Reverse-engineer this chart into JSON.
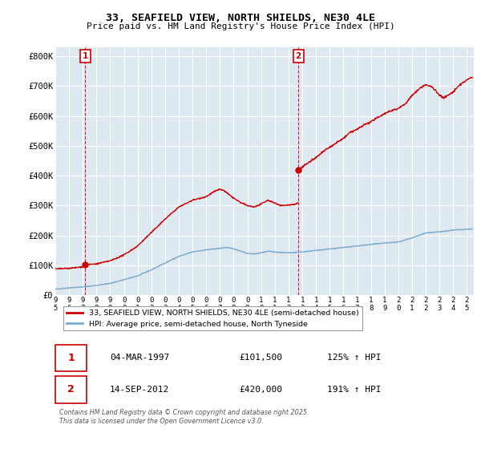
{
  "title": "33, SEAFIELD VIEW, NORTH SHIELDS, NE30 4LE",
  "subtitle": "Price paid vs. HM Land Registry's House Price Index (HPI)",
  "property_label": "33, SEAFIELD VIEW, NORTH SHIELDS, NE30 4LE (semi-detached house)",
  "hpi_label": "HPI: Average price, semi-detached house, North Tyneside",
  "property_color": "#cc0000",
  "hpi_color": "#7aabcf",
  "annotation1_label": "1",
  "annotation1_date": "04-MAR-1997",
  "annotation1_price": "£101,500",
  "annotation1_hpi": "125% ↑ HPI",
  "annotation1_year": 1997.17,
  "annotation1_value": 101500,
  "annotation2_label": "2",
  "annotation2_date": "14-SEP-2012",
  "annotation2_price": "£420,000",
  "annotation2_hpi": "191% ↑ HPI",
  "annotation2_year": 2012.71,
  "annotation2_value": 420000,
  "ylim": [
    0,
    830000
  ],
  "yticks": [
    0,
    100000,
    200000,
    300000,
    400000,
    500000,
    600000,
    700000,
    800000
  ],
  "ytick_labels": [
    "£0",
    "£100K",
    "£200K",
    "£300K",
    "£400K",
    "£500K",
    "£600K",
    "£700K",
    "£800K"
  ],
  "xmin": 1995.0,
  "xmax": 2025.5,
  "xticks": [
    1995,
    1996,
    1997,
    1998,
    1999,
    2000,
    2001,
    2002,
    2003,
    2004,
    2005,
    2006,
    2007,
    2008,
    2009,
    2010,
    2011,
    2012,
    2013,
    2014,
    2015,
    2016,
    2017,
    2018,
    2019,
    2020,
    2021,
    2022,
    2023,
    2024,
    2025
  ],
  "background_color": "#dde8f0",
  "grid_color": "#ffffff",
  "footer_text": "Contains HM Land Registry data © Crown copyright and database right 2025.\nThis data is licensed under the Open Government Licence v3.0."
}
